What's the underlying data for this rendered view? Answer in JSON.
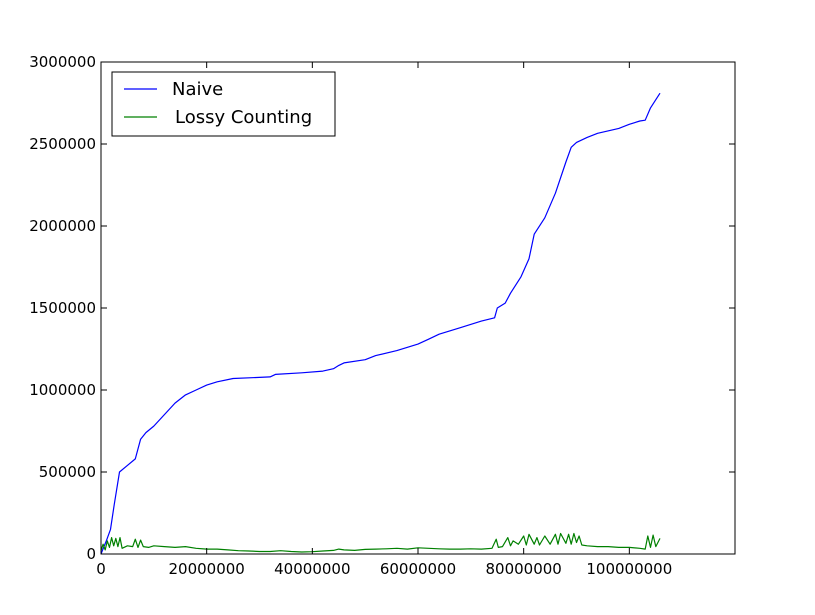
{
  "chart_data": {
    "type": "line",
    "title": "",
    "xlabel": "",
    "ylabel": "",
    "xlim": [
      0,
      120000000
    ],
    "ylim": [
      0,
      3000000
    ],
    "x_ticks": [
      0,
      20000000,
      40000000,
      60000000,
      80000000,
      100000000
    ],
    "x_tick_labels": [
      "0",
      "20000000",
      "40000000",
      "60000000",
      "80000000",
      "100000000"
    ],
    "y_ticks": [
      0,
      500000,
      1000000,
      1500000,
      2000000,
      2500000,
      3000000
    ],
    "y_tick_labels": [
      "0",
      "500000",
      "1000000",
      "1500000",
      "2000000",
      "2500000",
      "3000000"
    ],
    "grid": false,
    "legend_position": "top-left",
    "series": [
      {
        "name": "Naive",
        "color": "#0000ff",
        "x": [
          0,
          1000000,
          1800000,
          2500000,
          3500000,
          5000000,
          6500000,
          7500000,
          8500000,
          10000000,
          12000000,
          14000000,
          16000000,
          18000000,
          20000000,
          22000000,
          25000000,
          32000000,
          33000000,
          38000000,
          42000000,
          44000000,
          45000000,
          46000000,
          50000000,
          52000000,
          56000000,
          60000000,
          62000000,
          64000000,
          68000000,
          72000000,
          74500000,
          75000000,
          76500000,
          77500000,
          79500000,
          81000000,
          82000000,
          84000000,
          86000000,
          88000000,
          89000000,
          90000000,
          92000000,
          94000000,
          98000000,
          100000000,
          102000000,
          103000000,
          104000000,
          105000000,
          105800000
        ],
        "y": [
          0,
          80000,
          150000,
          300000,
          500000,
          540000,
          580000,
          700000,
          740000,
          780000,
          850000,
          920000,
          970000,
          1000000,
          1030000,
          1050000,
          1070000,
          1080000,
          1095000,
          1105000,
          1115000,
          1130000,
          1150000,
          1165000,
          1185000,
          1210000,
          1240000,
          1280000,
          1310000,
          1340000,
          1380000,
          1420000,
          1440000,
          1500000,
          1530000,
          1590000,
          1690000,
          1800000,
          1950000,
          2050000,
          2200000,
          2390000,
          2480000,
          2510000,
          2540000,
          2565000,
          2595000,
          2620000,
          2640000,
          2645000,
          2720000,
          2770000,
          2810000
        ]
      },
      {
        "name": "Lossy Counting",
        "color": "#008000",
        "x": [
          0,
          400000,
          800000,
          1200000,
          1600000,
          2000000,
          2400000,
          2800000,
          3200000,
          3600000,
          4000000,
          5000000,
          6000000,
          6500000,
          7000000,
          7500000,
          8000000,
          9000000,
          10000000,
          12000000,
          14000000,
          16000000,
          18000000,
          20000000,
          22000000,
          24000000,
          26000000,
          28000000,
          30000000,
          32000000,
          34000000,
          36000000,
          38000000,
          40000000,
          42000000,
          44000000,
          45000000,
          46000000,
          48000000,
          50000000,
          52000000,
          54000000,
          56000000,
          58000000,
          60000000,
          62000000,
          64000000,
          66000000,
          68000000,
          70000000,
          72000000,
          74000000,
          74800000,
          75200000,
          76000000,
          77000000,
          77500000,
          78000000,
          79000000,
          80000000,
          80500000,
          81000000,
          82000000,
          82500000,
          83000000,
          84000000,
          85000000,
          86000000,
          86500000,
          87000000,
          88000000,
          88500000,
          89000000,
          89500000,
          90000000,
          90500000,
          91000000,
          92000000,
          94000000,
          96000000,
          98000000,
          100000000,
          102000000,
          103000000,
          103500000,
          104000000,
          104500000,
          105000000,
          105800000
        ],
        "y": [
          20000,
          60000,
          25000,
          80000,
          40000,
          100000,
          50000,
          95000,
          45000,
          100000,
          35000,
          50000,
          45000,
          90000,
          40000,
          85000,
          45000,
          40000,
          50000,
          45000,
          40000,
          45000,
          35000,
          30000,
          30000,
          25000,
          20000,
          18000,
          15000,
          15000,
          20000,
          15000,
          12000,
          14000,
          18000,
          22000,
          30000,
          25000,
          22000,
          28000,
          30000,
          32000,
          35000,
          30000,
          38000,
          35000,
          32000,
          30000,
          30000,
          32000,
          30000,
          35000,
          90000,
          40000,
          45000,
          100000,
          50000,
          80000,
          60000,
          110000,
          55000,
          120000,
          60000,
          100000,
          55000,
          110000,
          60000,
          120000,
          60000,
          125000,
          65000,
          120000,
          60000,
          125000,
          70000,
          110000,
          55000,
          50000,
          45000,
          45000,
          40000,
          40000,
          35000,
          30000,
          110000,
          40000,
          115000,
          45000,
          95000
        ]
      }
    ]
  }
}
